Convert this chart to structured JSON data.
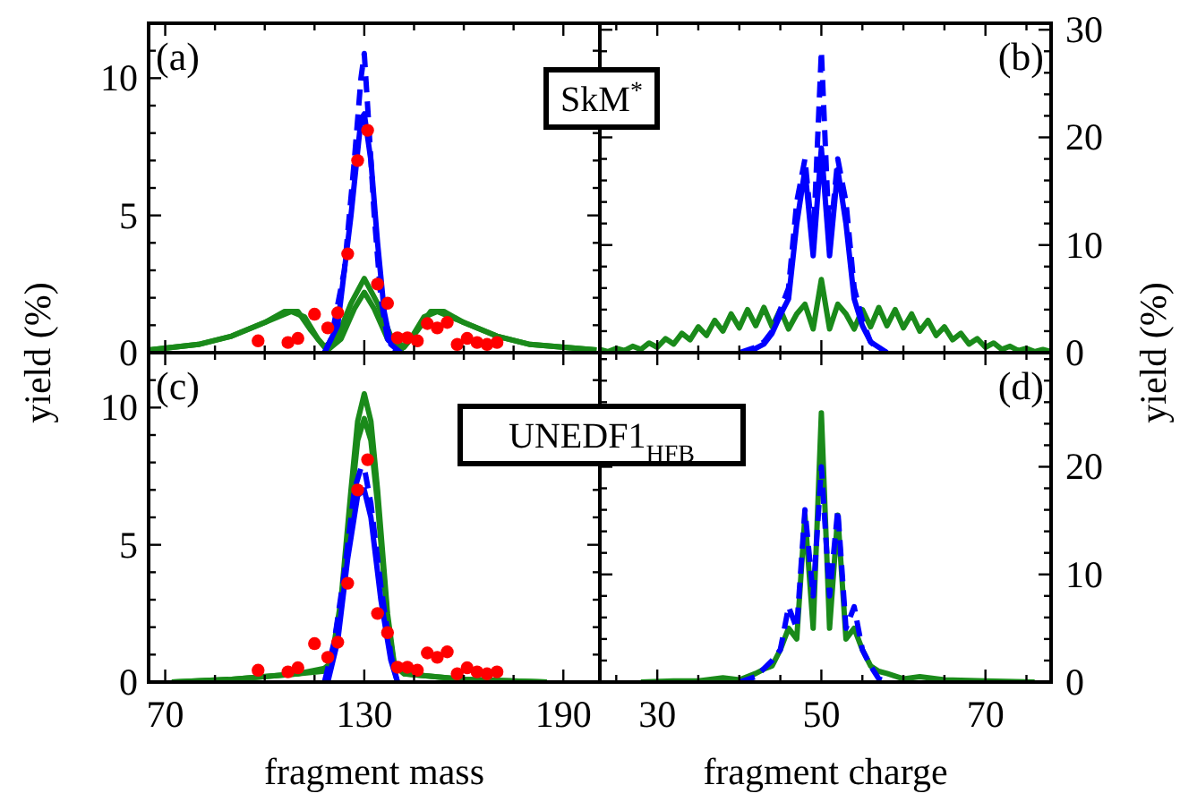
{
  "chart_data": [
    {
      "type": "line",
      "annotations": [
        "(a)",
        "SkM$^{*}$"
      ],
      "ylabel": "yield (%)",
      "xlim": [
        65,
        201
      ],
      "xticks": [
        70,
        {
          "value": 85,
          "label": null
        },
        {
          "value": 100,
          "label": null
        },
        {
          "value": 115,
          "label": null
        },
        130,
        {
          "value": 145,
          "label": null
        },
        {
          "value": 160,
          "label": null
        },
        {
          "value": 175,
          "label": null
        },
        190
      ],
      "ylim": [
        0,
        12
      ],
      "yticks": [
        0,
        {
          "value": 1,
          "label": null
        },
        {
          "value": 2,
          "label": null
        },
        {
          "value": 3,
          "label": null
        },
        {
          "value": 4,
          "label": null
        },
        5,
        {
          "value": 6,
          "label": null
        },
        {
          "value": 7,
          "label": null
        },
        {
          "value": 8,
          "label": null
        },
        {
          "value": 9,
          "label": null
        },
        10,
        {
          "value": 11,
          "label": null
        }
      ],
      "tick_labels": "y",
      "series": [
        {
          "type": "line",
          "color": "#1a8a1a",
          "line_style": "solid",
          "x": [
            65,
            80,
            90,
            100,
            106,
            110,
            114,
            118,
            122,
            126,
            130,
            134,
            138,
            142,
            146,
            150,
            154,
            160,
            170,
            180,
            200
          ],
          "values": [
            0.1,
            0.3,
            0.6,
            1.1,
            1.5,
            1.5,
            0.8,
            0.2,
            0.6,
            1.8,
            2.7,
            1.8,
            0.6,
            0.2,
            0.8,
            1.5,
            1.5,
            1.1,
            0.6,
            0.3,
            0.1
          ]
        },
        {
          "type": "line",
          "color": "#1a8a1a",
          "line_style": "solid",
          "x": [
            65,
            80,
            90,
            100,
            108,
            112,
            116,
            119,
            123,
            127,
            130,
            133,
            137,
            141,
            144,
            148,
            152,
            160,
            170,
            180,
            200
          ],
          "values": [
            0.1,
            0.3,
            0.6,
            1.1,
            1.5,
            1.3,
            0.5,
            0.1,
            0.5,
            1.6,
            2.2,
            1.6,
            0.5,
            0.1,
            0.5,
            1.3,
            1.5,
            1.1,
            0.6,
            0.3,
            0.1
          ]
        },
        {
          "type": "line",
          "color": "#0000ff",
          "line_style": "solid",
          "x": [
            118,
            122,
            126,
            129,
            130,
            132,
            134,
            136,
            138,
            141
          ],
          "values": [
            0,
            1,
            5,
            8.5,
            8.7,
            7,
            4,
            1.5,
            0.3,
            0
          ]
        },
        {
          "type": "line",
          "color": "#0000ff",
          "line_style": "dashed",
          "x": [
            118,
            120,
            124,
            127,
            129,
            130,
            131,
            133,
            135,
            137,
            140
          ],
          "values": [
            0,
            0.5,
            3,
            7,
            10,
            10.9,
            9,
            5,
            2,
            0.5,
            0
          ]
        },
        {
          "type": "scatter",
          "color": "#ff0000",
          "marker": "circle",
          "x": [
            98,
            107,
            110,
            115,
            119,
            122,
            125,
            128,
            131,
            134,
            137,
            140,
            143,
            146,
            149,
            152,
            155,
            158,
            161,
            164,
            167,
            170
          ],
          "values": [
            0.43,
            0.37,
            0.52,
            1.4,
            0.9,
            1.45,
            3.6,
            7,
            8.1,
            2.5,
            1.8,
            0.54,
            0.54,
            0.43,
            1.06,
            0.9,
            1.1,
            0.3,
            0.52,
            0.37,
            0.3,
            0.37
          ]
        }
      ]
    },
    {
      "type": "line",
      "annotations": [
        "(b)"
      ],
      "ylabel": "yield (%)",
      "xlim": [
        23,
        78
      ],
      "xticks": [
        {
          "value": 25,
          "label": null
        },
        30,
        {
          "value": 35,
          "label": null
        },
        {
          "value": 40,
          "label": null
        },
        {
          "value": 45,
          "label": null
        },
        50,
        {
          "value": 55,
          "label": null
        },
        {
          "value": 60,
          "label": null
        },
        {
          "value": 65,
          "label": null
        },
        70,
        {
          "value": 75,
          "label": null
        }
      ],
      "ylim": [
        0,
        30.6
      ],
      "yticks": [
        0,
        {
          "value": 2,
          "label": null
        },
        {
          "value": 4,
          "label": null
        },
        {
          "value": 6,
          "label": null
        },
        {
          "value": 8,
          "label": null
        },
        10,
        {
          "value": 12,
          "label": null
        },
        {
          "value": 14,
          "label": null
        },
        {
          "value": 16,
          "label": null
        },
        {
          "value": 18,
          "label": null
        },
        20,
        {
          "value": 22,
          "label": null
        },
        {
          "value": 24,
          "label": null
        },
        {
          "value": 26,
          "label": null
        },
        {
          "value": 28,
          "label": null
        },
        30
      ],
      "tick_labels": "y",
      "series": [
        {
          "type": "line",
          "color": "#1a8a1a",
          "line_style": "solid",
          "x": [
            23,
            24,
            25,
            26,
            27,
            28,
            29,
            30,
            31,
            32,
            33,
            34,
            35,
            36,
            37,
            38,
            39,
            40,
            41,
            42,
            43,
            44,
            45,
            46,
            47,
            48,
            49,
            50,
            51,
            52,
            53,
            54,
            55,
            56,
            57,
            58,
            59,
            60,
            61,
            62,
            63,
            64,
            65,
            66,
            67,
            68,
            69,
            70,
            71,
            72,
            73,
            74,
            75,
            76,
            77,
            78
          ],
          "values": [
            0.3,
            0.1,
            0.4,
            0.2,
            0.6,
            0.3,
            0.9,
            0.5,
            1.3,
            0.8,
            1.8,
            1.2,
            2.4,
            1.6,
            3,
            2,
            3.6,
            2.3,
            4,
            2.5,
            4.2,
            2.4,
            4,
            2.2,
            3.6,
            4.5,
            2.2,
            6.8,
            2.2,
            4.5,
            3.6,
            2.2,
            4,
            2.4,
            4.2,
            2.5,
            4,
            2.3,
            3.6,
            2,
            3,
            1.6,
            2.4,
            1.2,
            1.8,
            0.8,
            1.3,
            0.5,
            0.9,
            0.3,
            0.6,
            0.2,
            0.4,
            0.1,
            0.3,
            0.1
          ]
        },
        {
          "type": "line",
          "color": "#0000ff",
          "line_style": "solid",
          "x": [
            41,
            43,
            44,
            45,
            46,
            47,
            48,
            49,
            50,
            51,
            52,
            53,
            54,
            55,
            56,
            58
          ],
          "values": [
            0,
            0.8,
            1.8,
            3.5,
            5,
            12,
            17,
            9,
            19,
            9,
            17,
            12,
            5,
            2.5,
            1,
            0
          ]
        },
        {
          "type": "line",
          "color": "#0000ff",
          "line_style": "dashed",
          "x": [
            40,
            42,
            43,
            44,
            45,
            46,
            47,
            48,
            49,
            50,
            51,
            52,
            53,
            54,
            55,
            56,
            57,
            58
          ],
          "values": [
            0,
            0.5,
            1,
            2,
            4,
            6,
            14,
            18,
            10,
            28,
            10,
            18,
            14,
            6,
            3,
            1,
            0.3,
            0
          ]
        }
      ]
    },
    {
      "type": "line",
      "annotations": [
        "(c)",
        "UNEDF1$_{HFB}$"
      ],
      "xlabel": "fragment mass",
      "xlim": [
        65,
        201
      ],
      "xticks": [
        70,
        {
          "value": 85,
          "label": null
        },
        {
          "value": 100,
          "label": null
        },
        {
          "value": 115,
          "label": null
        },
        130,
        {
          "value": 145,
          "label": null
        },
        {
          "value": 160,
          "label": null
        },
        {
          "value": 175,
          "label": null
        },
        190
      ],
      "ylim": [
        0,
        12
      ],
      "yticks": [
        0,
        {
          "value": 1,
          "label": null
        },
        {
          "value": 2,
          "label": null
        },
        {
          "value": 3,
          "label": null
        },
        {
          "value": 4,
          "label": null
        },
        5,
        {
          "value": 6,
          "label": null
        },
        {
          "value": 7,
          "label": null
        },
        {
          "value": 8,
          "label": null
        },
        {
          "value": 9,
          "label": null
        },
        10,
        {
          "value": 11,
          "label": null
        }
      ],
      "series": [
        {
          "type": "line",
          "color": "#1a8a1a",
          "line_style": "solid",
          "x": [
            72,
            90,
            110,
            118,
            120,
            123,
            126,
            128,
            130,
            132,
            134,
            137,
            139,
            142,
            160,
            185
          ],
          "values": [
            0,
            0.1,
            0.3,
            0.5,
            0.7,
            3,
            7,
            9.5,
            10.5,
            9.5,
            7,
            2.5,
            0.7,
            0.3,
            0.1,
            0
          ]
        },
        {
          "type": "line",
          "color": "#1a8a1a",
          "line_style": "solid",
          "x": [
            72,
            90,
            110,
            118,
            120,
            123,
            126,
            128,
            130,
            132,
            134,
            137,
            139,
            142,
            160,
            185
          ],
          "values": [
            0,
            0.1,
            0.3,
            0.4,
            0.6,
            2.8,
            6.5,
            8.8,
            9.6,
            8.8,
            6.5,
            2.3,
            0.6,
            0.3,
            0.1,
            0
          ]
        },
        {
          "type": "line",
          "color": "#0000ff",
          "line_style": "solid",
          "x": [
            119,
            122,
            125,
            128,
            130,
            132,
            135,
            138,
            140
          ],
          "values": [
            0,
            1.5,
            4.5,
            6.8,
            7,
            6,
            3,
            0.8,
            0
          ]
        },
        {
          "type": "line",
          "color": "#0000ff",
          "line_style": "dashed",
          "x": [
            118,
            121,
            124,
            127,
            129,
            130,
            132,
            135,
            138,
            140
          ],
          "values": [
            0,
            1.5,
            4,
            7,
            7.8,
            7.8,
            6.5,
            3.5,
            1,
            0
          ]
        },
        {
          "type": "scatter",
          "color": "#ff0000",
          "marker": "circle",
          "x": [
            98,
            107,
            110,
            115,
            119,
            122,
            125,
            128,
            131,
            134,
            137,
            140,
            143,
            146,
            149,
            152,
            155,
            158,
            161,
            164,
            167,
            170
          ],
          "values": [
            0.43,
            0.37,
            0.52,
            1.4,
            0.9,
            1.45,
            3.6,
            7,
            8.1,
            2.5,
            1.8,
            0.54,
            0.54,
            0.43,
            1.06,
            0.9,
            1.1,
            0.3,
            0.52,
            0.37,
            0.3,
            0.37
          ]
        }
      ]
    },
    {
      "type": "line",
      "annotations": [
        "(d)"
      ],
      "xlabel": "fragment charge",
      "xlim": [
        23,
        78
      ],
      "xticks": [
        {
          "value": 25,
          "label": null
        },
        30,
        {
          "value": 35,
          "label": null
        },
        {
          "value": 40,
          "label": null
        },
        {
          "value": 45,
          "label": null
        },
        50,
        {
          "value": 55,
          "label": null
        },
        {
          "value": 60,
          "label": null
        },
        {
          "value": 65,
          "label": null
        },
        70,
        {
          "value": 75,
          "label": null
        }
      ],
      "ylim": [
        0,
        30.6
      ],
      "yticks": [
        0,
        {
          "value": 2,
          "label": null
        },
        {
          "value": 4,
          "label": null
        },
        {
          "value": 6,
          "label": null
        },
        {
          "value": 8,
          "label": null
        },
        10,
        {
          "value": 12,
          "label": null
        },
        {
          "value": 14,
          "label": null
        },
        {
          "value": 16,
          "label": null
        },
        {
          "value": 18,
          "label": null
        },
        20,
        {
          "value": 22,
          "label": null
        },
        {
          "value": 24,
          "label": null
        },
        {
          "value": 26,
          "label": null
        },
        {
          "value": 28,
          "label": null
        },
        {
          "value": 30,
          "label": null
        }
      ],
      "series": [
        {
          "type": "line",
          "color": "#1a8a1a",
          "line_style": "solid",
          "x": [
            28,
            32,
            35,
            38,
            40,
            42,
            43,
            44,
            45,
            46,
            47,
            48,
            49,
            50,
            51,
            52,
            53,
            54,
            55,
            56,
            57,
            58,
            60,
            62,
            65,
            70,
            76
          ],
          "values": [
            0,
            0.1,
            0.1,
            0.4,
            0.2,
            0.8,
            1.2,
            1.5,
            3,
            5,
            4,
            15.5,
            5,
            25,
            5,
            15.5,
            4,
            5,
            3,
            1.5,
            1,
            0.8,
            0.3,
            0.5,
            0.2,
            0.1,
            0
          ]
        },
        {
          "type": "line",
          "color": "#0000ff",
          "line_style": "dashed",
          "x": [
            40,
            42,
            44,
            45,
            46,
            47,
            48,
            49,
            50,
            51,
            52,
            53,
            54,
            55,
            56,
            57,
            58
          ],
          "values": [
            0,
            0.5,
            2,
            3,
            7,
            5,
            16,
            8,
            20,
            8,
            16,
            5,
            7,
            3,
            1.5,
            0.3,
            0
          ]
        }
      ]
    }
  ]
}
